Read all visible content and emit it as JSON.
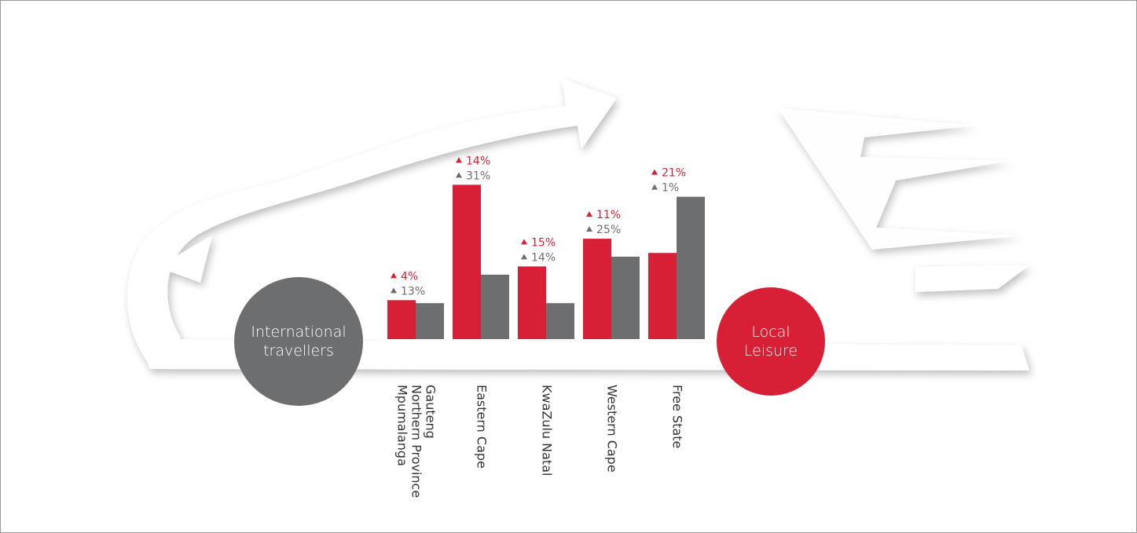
{
  "chart_data": {
    "type": "bar",
    "categories": [
      [
        "Gauteng",
        "Northern Province",
        "Mpumalanga"
      ],
      [
        "Eastern Cape"
      ],
      [
        "KwaZulu Natal"
      ],
      [
        "Western Cape"
      ],
      [
        "Free State"
      ]
    ],
    "ylim": [
      0,
      220
    ],
    "series": [
      {
        "name": "Local Leisure",
        "color": "#d71f35",
        "values": [
          52,
          206,
          97,
          134,
          115
        ],
        "changes": [
          4,
          14,
          15,
          11,
          21
        ],
        "change_labels": [
          "4%",
          "14%",
          "15%",
          "11%",
          "21%"
        ]
      },
      {
        "name": "International travellers",
        "color": "#6d6e70",
        "values": [
          48,
          86,
          48,
          110,
          190
        ],
        "changes": [
          13,
          31,
          14,
          25,
          1
        ],
        "change_labels": [
          "13%",
          "31%",
          "14%",
          "25%",
          "1%"
        ]
      }
    ]
  }
}
